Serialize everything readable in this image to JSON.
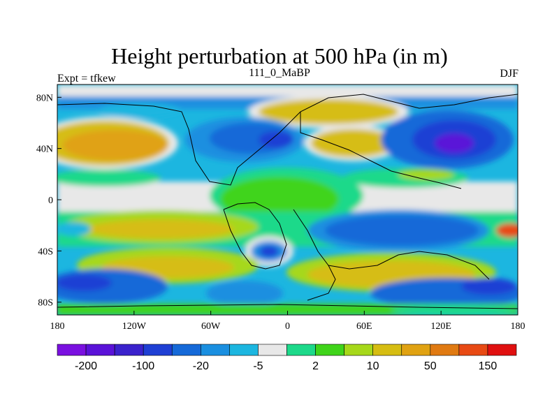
{
  "title": "Height perturbation at 500 hPa (in m)",
  "subtitle": "111_0_MaBP",
  "left_label": "Expt = tfkew",
  "right_label": "DJF",
  "chart_data": {
    "type": "heatmap",
    "variable": "500 hPa height perturbation",
    "units": "m",
    "x_ticks": [
      "180",
      "120W",
      "60W",
      "0",
      "60E",
      "120E",
      "180"
    ],
    "y_ticks": [
      "80N",
      "40N",
      "0",
      "40S",
      "80S"
    ],
    "xlim": [
      -180,
      180
    ],
    "ylim": [
      -90,
      90
    ],
    "colorbar": {
      "colors": [
        "#7a10e0",
        "#5a12d8",
        "#3a22cc",
        "#1f3fd4",
        "#1569d8",
        "#1a8fe0",
        "#1cb6e0",
        "#e8e8e8",
        "#1dd98a",
        "#3fd41a",
        "#a6d81a",
        "#d6bd12",
        "#e0a212",
        "#e07a12",
        "#e84a14",
        "#e01010"
      ],
      "labels": [
        "-200",
        "-100",
        "-20",
        "-5",
        "2",
        "10",
        "50",
        "150"
      ]
    }
  }
}
